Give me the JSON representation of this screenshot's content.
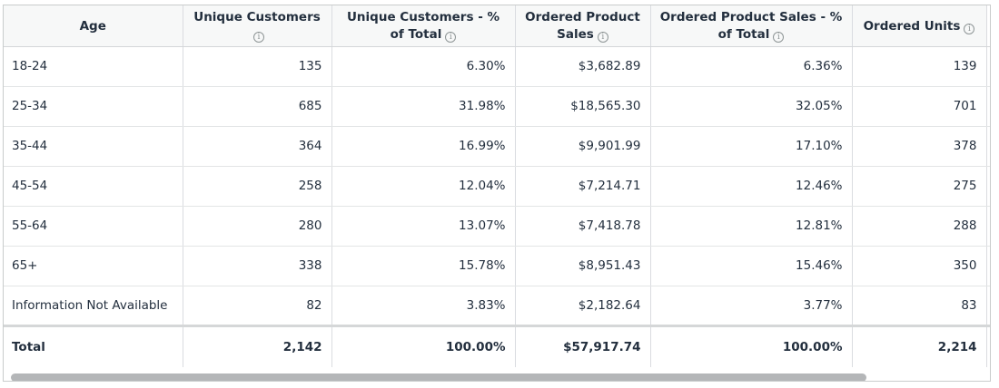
{
  "table": {
    "headers": [
      {
        "label": "Age",
        "info": false
      },
      {
        "label": "Unique Customers",
        "info": true
      },
      {
        "label": "Unique Customers - % of Total",
        "info": true
      },
      {
        "label": "Ordered Product Sales",
        "info": true
      },
      {
        "label": "Ordered Product Sales - % of Total",
        "info": true
      },
      {
        "label": "Ordered Units",
        "info": true
      }
    ],
    "info_glyph": "i",
    "rows": [
      {
        "age": "18-24",
        "unique_customers": "135",
        "unique_customers_pct": "6.30%",
        "ordered_sales": "$3,682.89",
        "ordered_sales_pct": "6.36%",
        "ordered_units": "139"
      },
      {
        "age": "25-34",
        "unique_customers": "685",
        "unique_customers_pct": "31.98%",
        "ordered_sales": "$18,565.30",
        "ordered_sales_pct": "32.05%",
        "ordered_units": "701"
      },
      {
        "age": "35-44",
        "unique_customers": "364",
        "unique_customers_pct": "16.99%",
        "ordered_sales": "$9,901.99",
        "ordered_sales_pct": "17.10%",
        "ordered_units": "378"
      },
      {
        "age": "45-54",
        "unique_customers": "258",
        "unique_customers_pct": "12.04%",
        "ordered_sales": "$7,214.71",
        "ordered_sales_pct": "12.46%",
        "ordered_units": "275"
      },
      {
        "age": "55-64",
        "unique_customers": "280",
        "unique_customers_pct": "13.07%",
        "ordered_sales": "$7,418.78",
        "ordered_sales_pct": "12.81%",
        "ordered_units": "288"
      },
      {
        "age": "65+",
        "unique_customers": "338",
        "unique_customers_pct": "15.78%",
        "ordered_sales": "$8,951.43",
        "ordered_sales_pct": "15.46%",
        "ordered_units": "350"
      },
      {
        "age": "Information Not Available",
        "unique_customers": "82",
        "unique_customers_pct": "3.83%",
        "ordered_sales": "$2,182.64",
        "ordered_sales_pct": "3.77%",
        "ordered_units": "83"
      }
    ],
    "total": {
      "age": "Total",
      "unique_customers": "2,142",
      "unique_customers_pct": "100.00%",
      "ordered_sales": "$57,917.74",
      "ordered_sales_pct": "100.00%",
      "ordered_units": "2,214"
    }
  },
  "colors": {
    "text": "#232f3e",
    "grid": "#dadce0",
    "header_bg": "#f7f8f8",
    "scrollbar_thumb": "#b4b6b8"
  }
}
